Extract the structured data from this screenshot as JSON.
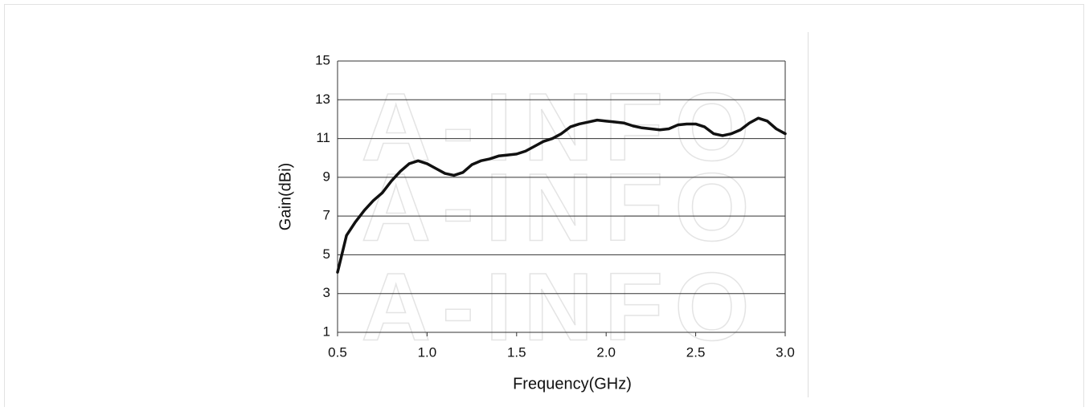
{
  "chart_data": {
    "type": "line",
    "watermark": "A-INFO",
    "xlabel": "Frequency(GHz)",
    "ylabel": "Gain(dBi)",
    "x": [
      0.5,
      0.55,
      0.6,
      0.65,
      0.7,
      0.75,
      0.8,
      0.85,
      0.9,
      0.95,
      1.0,
      1.05,
      1.1,
      1.15,
      1.2,
      1.25,
      1.3,
      1.35,
      1.4,
      1.45,
      1.5,
      1.55,
      1.6,
      1.65,
      1.7,
      1.75,
      1.8,
      1.85,
      1.9,
      1.95,
      2.0,
      2.05,
      2.1,
      2.15,
      2.2,
      2.25,
      2.3,
      2.35,
      2.4,
      2.45,
      2.5,
      2.55,
      2.6,
      2.65,
      2.7,
      2.75,
      2.8,
      2.85,
      2.9,
      2.95,
      3.0
    ],
    "series": [
      {
        "color": "#111111",
        "values": [
          4.1,
          6.0,
          6.7,
          7.3,
          7.8,
          8.2,
          8.8,
          9.3,
          9.7,
          9.85,
          9.7,
          9.45,
          9.2,
          9.1,
          9.25,
          9.65,
          9.85,
          9.95,
          10.1,
          10.15,
          10.2,
          10.35,
          10.6,
          10.85,
          11.0,
          11.25,
          11.6,
          11.75,
          11.85,
          11.95,
          11.9,
          11.85,
          11.8,
          11.65,
          11.55,
          11.5,
          11.45,
          11.5,
          11.7,
          11.75,
          11.75,
          11.6,
          11.25,
          11.15,
          11.25,
          11.45,
          11.8,
          12.05,
          11.9,
          11.5,
          11.25
        ]
      }
    ],
    "xlim": [
      0.5,
      3.0
    ],
    "xticks": [
      0.5,
      {
        "value": 1,
        "label": "1.0"
      },
      1.5,
      {
        "value": 2,
        "label": "2.0"
      },
      2.5,
      {
        "value": 3,
        "label": "3.0"
      }
    ],
    "ylim": [
      1,
      15
    ],
    "yticks": [
      1,
      3,
      5,
      7,
      9,
      11,
      13,
      15
    ],
    "grid": true
  }
}
